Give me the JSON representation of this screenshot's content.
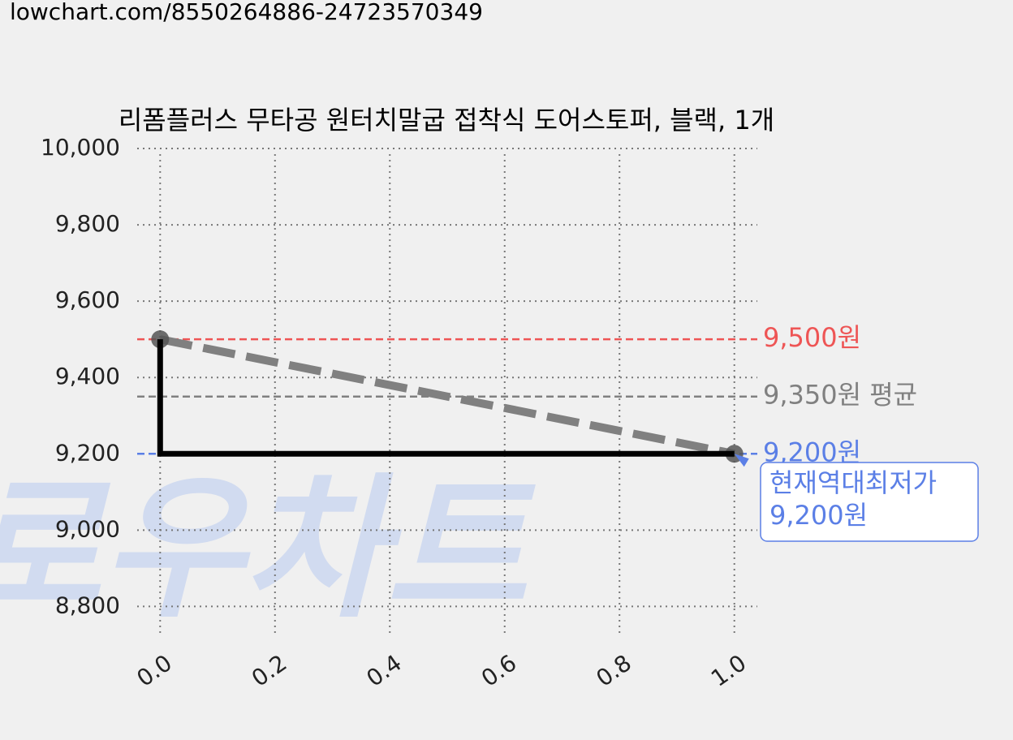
{
  "header": "lowchart.com/8550264886-24723570349",
  "chart_data": {
    "type": "line",
    "title": "리폼플러스 무타공 원터치말굽 접착식 도어스토퍼, 블랙, 1개",
    "watermark": "로우차트",
    "x": [
      0,
      1
    ],
    "series": [
      {
        "color": "#808080",
        "style": "dashed",
        "markers": true,
        "values": [
          9500,
          9200
        ]
      },
      {
        "color": "#000000",
        "style": "step-pre",
        "markers": false,
        "values": [
          9500,
          9200
        ]
      }
    ],
    "xlim": [
      -0.04,
      1.04
    ],
    "ylim": [
      8720,
      10000
    ],
    "xticks": [
      {
        "value": 0,
        "label": "0.0"
      },
      0.2,
      0.4,
      0.6,
      0.8,
      {
        "value": 1,
        "label": "1.0"
      }
    ],
    "yticks": [
      {
        "value": 8800,
        "label": "8,800"
      },
      {
        "value": 9000,
        "label": "9,000"
      },
      {
        "value": 9200,
        "label": "9,200"
      },
      {
        "value": 9400,
        "label": "9,400"
      },
      {
        "value": 9600,
        "label": "9,600"
      },
      {
        "value": 9800,
        "label": "9,800"
      },
      {
        "value": 10000,
        "label": "10,000"
      }
    ],
    "grid": true,
    "hlines": [
      {
        "value": 9500,
        "label": "9,500원",
        "color": "#ee5555"
      },
      {
        "value": 9350,
        "label": "9,350원 평균",
        "color": "#808080"
      },
      {
        "value": 9200,
        "label": "9,200원",
        "color": "#5b7fe6"
      }
    ],
    "annotation": {
      "x": 1,
      "y": 9200,
      "lines": [
        "현재역대최저가",
        "9,200원"
      ],
      "color": "#5b7fe6"
    }
  }
}
